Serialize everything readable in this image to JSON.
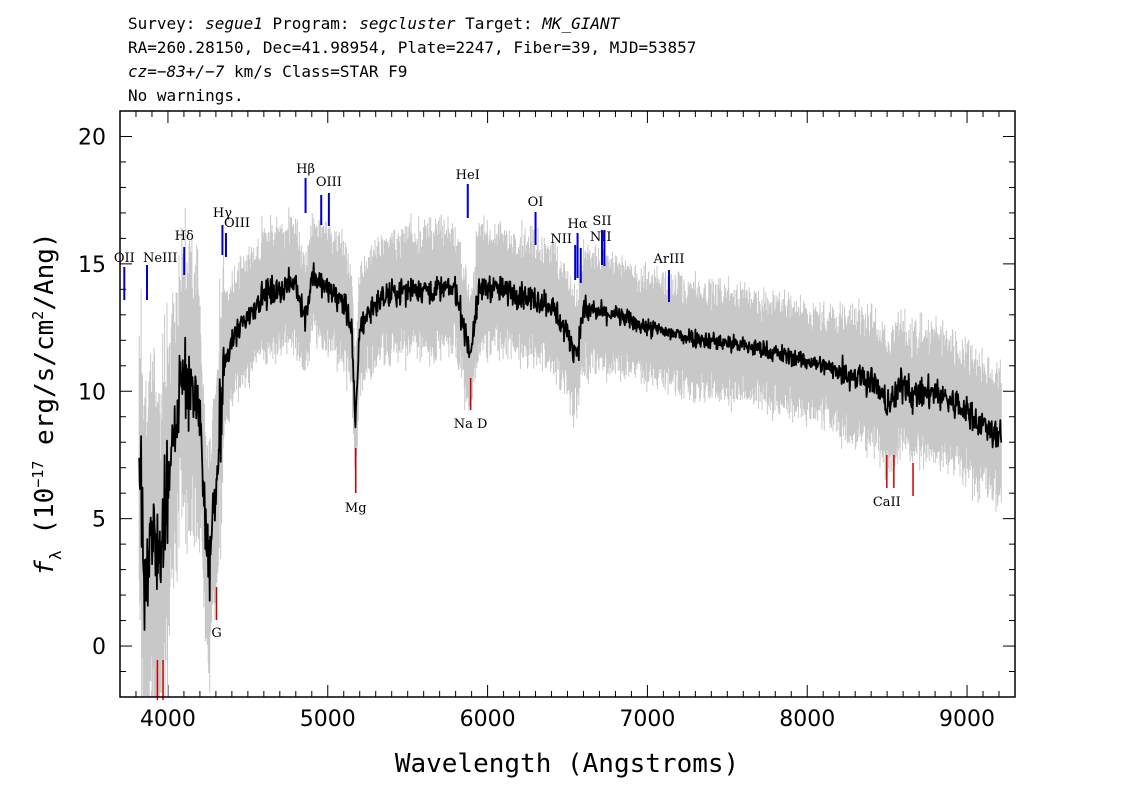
{
  "header": {
    "line1": {
      "survey_label": "Survey: ",
      "survey": "segue1",
      "program_label": " Program: ",
      "program": "segcluster",
      "target_label": " Target: ",
      "target": "MK_GIANT"
    },
    "line2": "RA=260.28150, Dec=41.98954, Plate=2247, Fiber=39, MJD=53857",
    "line3": {
      "cz_label": "cz",
      "cz_value": "=−83+/−7",
      "rest": " km/s Class=STAR F9"
    },
    "line4": "No warnings."
  },
  "chart_data": {
    "type": "line",
    "xlabel": "Wavelength (Angstroms)",
    "ylabel": "f_λ (10^-17 erg/s/cm^2/Ang)",
    "xlim": [
      3700,
      9300
    ],
    "ylim": [
      -2,
      21
    ],
    "x_ticks": [
      4000,
      5000,
      6000,
      7000,
      8000,
      9000
    ],
    "y_ticks": [
      0,
      5,
      10,
      15,
      20
    ],
    "colors": {
      "flux": "#000000",
      "error_band": "#c8c8c8",
      "emission": "#0000cc",
      "absorption": "#cc0000"
    },
    "spectrum_knots": {
      "x": [
        3800,
        3850,
        3900,
        3950,
        4000,
        4050,
        4100,
        4150,
        4200,
        4250,
        4300,
        4350,
        4400,
        4500,
        4600,
        4700,
        4800,
        4860,
        4900,
        5000,
        5100,
        5150,
        5172,
        5200,
        5300,
        5400,
        5500,
        5600,
        5700,
        5800,
        5890,
        5950,
        6000,
        6200,
        6400,
        6560,
        6600,
        6800,
        7000,
        7200,
        7400,
        7600,
        7800,
        8000,
        8200,
        8400,
        8498,
        8542,
        8600,
        8662,
        8800,
        9000,
        9200
      ],
      "y": [
        11.5,
        2,
        5,
        3,
        6,
        9,
        10.5,
        10,
        9,
        3,
        6,
        11,
        12,
        13,
        13.8,
        14,
        14.3,
        12.8,
        14.5,
        14,
        13.5,
        12.5,
        8.5,
        12.5,
        13.5,
        13.8,
        14,
        14,
        14,
        14,
        11.5,
        14,
        14.1,
        13.8,
        13.4,
        11.5,
        13.2,
        13,
        12.5,
        12.2,
        12,
        11.8,
        11.5,
        11.2,
        10.8,
        10.5,
        9.5,
        9.7,
        10.4,
        9.8,
        10,
        9.2,
        8.2
      ]
    },
    "emission_lines": [
      {
        "name": "OII",
        "wavelength": 3727
      },
      {
        "name": "NeIII",
        "wavelength": 3869
      },
      {
        "name": "Hδ",
        "wavelength": 4102
      },
      {
        "name": "Hγ",
        "wavelength": 4341
      },
      {
        "name": "OIII",
        "wavelength": 4363
      },
      {
        "name": "Hβ",
        "wavelength": 4861
      },
      {
        "name": "OIII",
        "wavelength": 4959
      },
      {
        "name": "OIII",
        "wavelength": 5007
      },
      {
        "name": "HeI",
        "wavelength": 5876
      },
      {
        "name": "OI",
        "wavelength": 6300
      },
      {
        "name": "NII",
        "wavelength": 6548
      },
      {
        "name": "Hα",
        "wavelength": 6563
      },
      {
        "name": "NII",
        "wavelength": 6583
      },
      {
        "name": "SII",
        "wavelength": 6716
      },
      {
        "name": "SII",
        "wavelength": 6731
      },
      {
        "name": "ArIII",
        "wavelength": 7135
      }
    ],
    "absorption_lines": [
      {
        "name": "CaII",
        "wavelength": 3934
      },
      {
        "name": "CaII",
        "wavelength": 3969
      },
      {
        "name": "G",
        "wavelength": 4304
      },
      {
        "name": "Mg",
        "wavelength": 5175
      },
      {
        "name": "Na D",
        "wavelength": 5894
      },
      {
        "name": "CaII",
        "wavelength": 8498
      },
      {
        "name": "CaII",
        "wavelength": 8542
      },
      {
        "name": "CaII",
        "wavelength": 8662
      }
    ]
  }
}
